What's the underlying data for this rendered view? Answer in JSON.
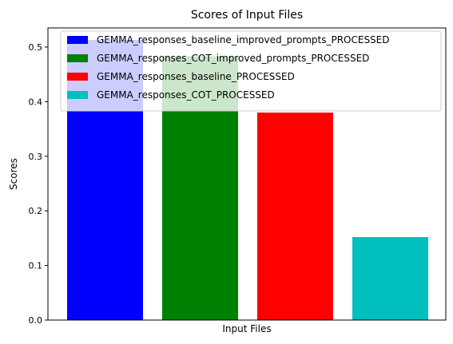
{
  "chart_data": {
    "type": "bar",
    "title": "Scores of Input Files",
    "xlabel": "Input Files",
    "ylabel": "Scores",
    "ylim": [
      0,
      0.535
    ],
    "yticks": [
      0.0,
      0.1,
      0.2,
      0.3,
      0.4,
      0.5
    ],
    "ytick_labels": [
      "0.0",
      "0.1",
      "0.2",
      "0.3",
      "0.4",
      "0.5"
    ],
    "grid": false,
    "legend_position": "top-right",
    "series": [
      {
        "name": "GEMMA_responses_baseline_improved_prompts_PROCESSED",
        "value": 0.513,
        "color": "#0000ff"
      },
      {
        "name": "GEMMA_responses_COT_improved_prompts_PROCESSED",
        "value": 0.483,
        "color": "#008000"
      },
      {
        "name": "GEMMA_responses_baseline_PROCESSED",
        "value": 0.38,
        "color": "#ff0000"
      },
      {
        "name": "GEMMA_responses_COT_PROCESSED",
        "value": 0.152,
        "color": "#00bfbf"
      }
    ]
  }
}
